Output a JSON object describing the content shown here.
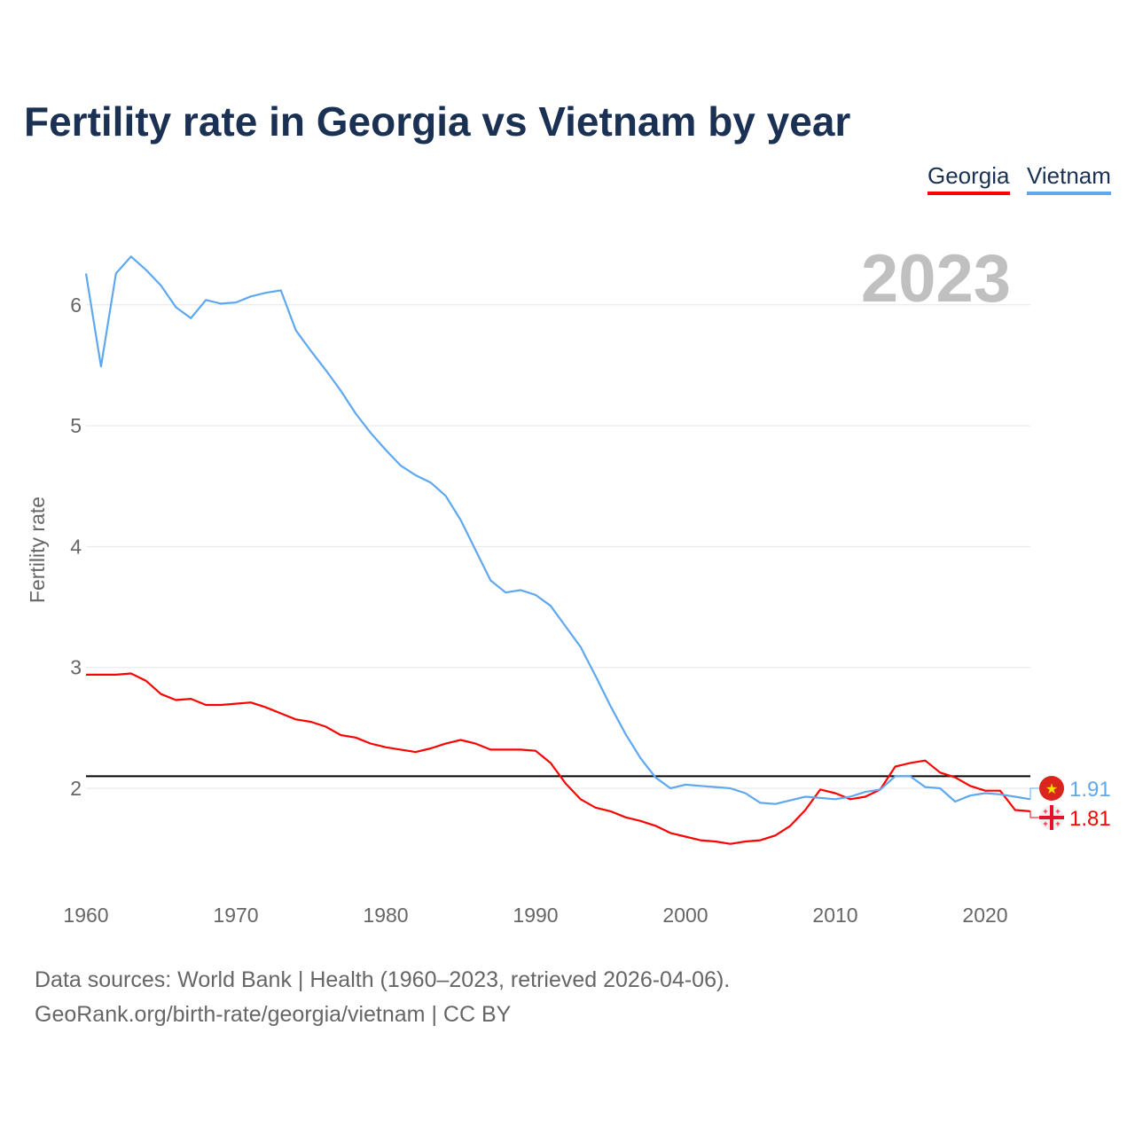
{
  "chart_data": {
    "type": "line",
    "title": "Fertility rate in Georgia vs Vietnam by year",
    "ylabel": "Fertility rate",
    "xlabel": "",
    "year_label": "2023",
    "xlim": [
      1960,
      2023
    ],
    "ylim": [
      1.3,
      6.6
    ],
    "x_ticks": [
      1960,
      1970,
      1980,
      1990,
      2000,
      2010,
      2020
    ],
    "y_ticks": [
      2,
      3,
      4,
      5,
      6
    ],
    "reference_line": 2.1,
    "grid": true,
    "legend_position": "top-right",
    "x": [
      1960,
      1961,
      1962,
      1963,
      1964,
      1965,
      1966,
      1967,
      1968,
      1969,
      1970,
      1971,
      1972,
      1973,
      1974,
      1975,
      1976,
      1977,
      1978,
      1979,
      1980,
      1981,
      1982,
      1983,
      1984,
      1985,
      1986,
      1987,
      1988,
      1989,
      1990,
      1991,
      1992,
      1993,
      1994,
      1995,
      1996,
      1997,
      1998,
      1999,
      2000,
      2001,
      2002,
      2003,
      2004,
      2005,
      2006,
      2007,
      2008,
      2009,
      2010,
      2011,
      2012,
      2013,
      2014,
      2015,
      2016,
      2017,
      2018,
      2019,
      2020,
      2021,
      2022,
      2023
    ],
    "series": [
      {
        "name": "Georgia",
        "color": "#ff0000",
        "end_label": "1.81",
        "values": [
          2.94,
          2.94,
          2.94,
          2.95,
          2.89,
          2.78,
          2.73,
          2.74,
          2.69,
          2.69,
          2.7,
          2.71,
          2.67,
          2.62,
          2.57,
          2.55,
          2.51,
          2.44,
          2.42,
          2.37,
          2.34,
          2.32,
          2.3,
          2.33,
          2.37,
          2.4,
          2.37,
          2.32,
          2.32,
          2.32,
          2.31,
          2.21,
          2.04,
          1.91,
          1.84,
          1.81,
          1.76,
          1.73,
          1.69,
          1.63,
          1.6,
          1.57,
          1.56,
          1.54,
          1.56,
          1.57,
          1.61,
          1.69,
          1.82,
          1.99,
          1.96,
          1.91,
          1.93,
          1.99,
          2.18,
          2.21,
          2.23,
          2.13,
          2.09,
          2.02,
          1.98,
          1.98,
          1.82,
          1.81
        ]
      },
      {
        "name": "Vietnam",
        "color": "#5ea8ef",
        "end_label": "1.91",
        "values": [
          6.26,
          5.49,
          6.26,
          6.4,
          6.29,
          6.16,
          5.98,
          5.89,
          6.04,
          6.01,
          6.02,
          6.07,
          6.1,
          6.12,
          5.79,
          5.62,
          5.46,
          5.29,
          5.1,
          4.94,
          4.8,
          4.67,
          4.59,
          4.53,
          4.42,
          4.22,
          3.97,
          3.72,
          3.62,
          3.64,
          3.6,
          3.51,
          3.34,
          3.17,
          2.93,
          2.68,
          2.45,
          2.25,
          2.09,
          2.0,
          2.03,
          2.02,
          2.01,
          2.0,
          1.96,
          1.88,
          1.87,
          1.9,
          1.93,
          1.92,
          1.91,
          1.93,
          1.97,
          1.99,
          2.1,
          2.1,
          2.01,
          2.0,
          1.89,
          1.94,
          1.96,
          1.95,
          1.93,
          1.91
        ]
      }
    ]
  },
  "footer": {
    "line1": "Data sources: World Bank | Health (1960–2023, retrieved 2026-04-06).",
    "line2": "GeoRank.org/birth-rate/georgia/vietnam | CC BY"
  }
}
